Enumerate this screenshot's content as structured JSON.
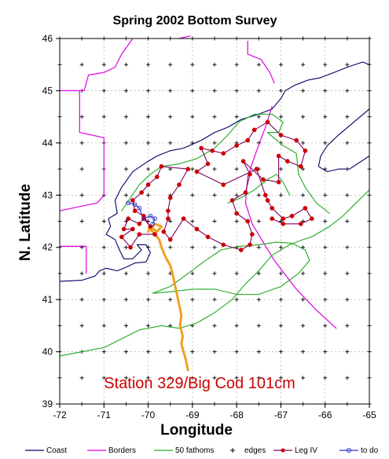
{
  "chart_data": {
    "type": "map",
    "title": "Spring 2002 Bottom Survey",
    "xlabel": "Longitude",
    "ylabel": "N. Latitude",
    "xlim": [
      -72,
      -65
    ],
    "ylim": [
      39,
      46
    ],
    "x_ticks": [
      "-72",
      "-71",
      "-70",
      "-69",
      "-68",
      "-67",
      "-66",
      "-65"
    ],
    "y_ticks": [
      "39",
      "40",
      "41",
      "42",
      "43",
      "44",
      "45",
      "46"
    ],
    "grid": true,
    "annotation": "Station 329/Big Cod 101cm",
    "colors": {
      "coast": "#000066",
      "borders": "#e000e0",
      "fathoms": "#22aa22",
      "leg": "#800060",
      "leg_marker": "#cc0000",
      "todo": "#3333cc",
      "track": "#f0a020",
      "annotation": "#cc0000"
    },
    "legend": [
      {
        "key": "coast",
        "label": "Coast"
      },
      {
        "key": "borders",
        "label": "Borders"
      },
      {
        "key": "fathoms",
        "label": "50 fathoms"
      },
      {
        "key": "edges",
        "label": "edges"
      },
      {
        "key": "leg",
        "label": "Leg IV"
      },
      {
        "key": "todo",
        "label": "to do"
      }
    ],
    "series": [
      {
        "name": "Coast",
        "key": "coast",
        "lines": [
          [
            [
              -72,
              41.35
            ],
            [
              -71.5,
              41.37
            ],
            [
              -71.2,
              41.45
            ],
            [
              -71.1,
              41.55
            ],
            [
              -70.95,
              41.6
            ],
            [
              -70.7,
              41.55
            ],
            [
              -70.5,
              41.62
            ],
            [
              -70.3,
              41.7
            ],
            [
              -70.05,
              41.72
            ],
            [
              -69.95,
              41.9
            ],
            [
              -70.05,
              42.05
            ],
            [
              -70.25,
              42.05
            ],
            [
              -70.15,
              41.95
            ],
            [
              -70.35,
              41.78
            ],
            [
              -70.55,
              41.78
            ],
            [
              -70.65,
              41.95
            ],
            [
              -70.75,
              42.15
            ],
            [
              -70.95,
              42.25
            ],
            [
              -70.85,
              42.4
            ],
            [
              -70.9,
              42.55
            ],
            [
              -70.7,
              42.65
            ],
            [
              -70.75,
              42.9
            ],
            [
              -70.6,
              43.15
            ],
            [
              -70.35,
              43.45
            ],
            [
              -70.0,
              43.65
            ],
            [
              -69.8,
              43.75
            ],
            [
              -69.5,
              43.85
            ],
            [
              -69.2,
              43.9
            ],
            [
              -68.8,
              44.05
            ],
            [
              -68.5,
              44.2
            ],
            [
              -68.2,
              44.3
            ],
            [
              -67.9,
              44.45
            ],
            [
              -67.5,
              44.55
            ],
            [
              -67.2,
              44.65
            ],
            [
              -67.0,
              44.85
            ],
            [
              -66.9,
              45.0
            ],
            [
              -66.7,
              45.1
            ],
            [
              -66.4,
              45.2
            ],
            [
              -66.1,
              45.25
            ],
            [
              -65.8,
              45.35
            ],
            [
              -65.5,
              45.45
            ],
            [
              -65.15,
              45.55
            ],
            [
              -65.0,
              45.5
            ]
          ],
          [
            [
              -65,
              44.65
            ],
            [
              -65.35,
              44.4
            ],
            [
              -65.7,
              44.15
            ],
            [
              -65.95,
              43.95
            ],
            [
              -66.1,
              43.75
            ],
            [
              -66.15,
              43.55
            ],
            [
              -65.95,
              43.45
            ],
            [
              -65.7,
              43.5
            ],
            [
              -65.45,
              43.5
            ],
            [
              -65.0,
              43.75
            ]
          ]
        ]
      },
      {
        "name": "Borders",
        "key": "borders",
        "lines": [
          [
            [
              -71.55,
              45.0
            ],
            [
              -71.55,
              44.2
            ],
            [
              -71.0,
              44.1
            ],
            [
              -71.0,
              43.0
            ],
            [
              -71.15,
              42.85
            ],
            [
              -72.0,
              42.7
            ]
          ],
          [
            [
              -72,
              45.0
            ],
            [
              -71.45,
              45.0
            ],
            [
              -71.35,
              45.3
            ],
            [
              -71.0,
              45.35
            ],
            [
              -70.75,
              45.45
            ],
            [
              -70.6,
              45.7
            ],
            [
              -70.35,
              46.0
            ]
          ],
          [
            [
              -69.3,
              46.0
            ],
            [
              -69.05,
              46.05
            ]
          ],
          [
            [
              -67.75,
              45.95
            ],
            [
              -67.75,
              45.7
            ],
            [
              -67.45,
              45.6
            ],
            [
              -67.25,
              45.35
            ],
            [
              -67.15,
              45.15
            ]
          ],
          [
            [
              -72,
              42.02
            ],
            [
              -71.4,
              42.02
            ],
            [
              -71.4,
              41.5
            ]
          ],
          [
            [
              -67.2,
              44.7
            ],
            [
              -67.35,
              44.3
            ],
            [
              -67.55,
              43.85
            ],
            [
              -67.75,
              43.35
            ],
            [
              -67.8,
              42.85
            ],
            [
              -67.65,
              42.45
            ],
            [
              -67.15,
              41.75
            ],
            [
              -66.65,
              41.2
            ],
            [
              -66.2,
              40.8
            ],
            [
              -65.75,
              40.45
            ]
          ]
        ]
      },
      {
        "name": "50 fathoms",
        "key": "fathoms",
        "lines": [
          [
            [
              -72,
              39.92
            ],
            [
              -71.5,
              40.0
            ],
            [
              -71.0,
              40.08
            ],
            [
              -70.6,
              40.25
            ],
            [
              -70.2,
              40.42
            ],
            [
              -69.7,
              40.5
            ],
            [
              -69.3,
              40.45
            ],
            [
              -68.9,
              40.55
            ],
            [
              -68.5,
              40.75
            ],
            [
              -68.1,
              41.0
            ],
            [
              -67.8,
              41.3
            ],
            [
              -67.5,
              41.55
            ],
            [
              -67.2,
              41.85
            ],
            [
              -66.8,
              42.05
            ],
            [
              -66.5,
              42.15
            ],
            [
              -66.3,
              42.2
            ],
            [
              -65.9,
              42.4
            ],
            [
              -65.6,
              42.6
            ],
            [
              -65.3,
              42.85
            ],
            [
              -65.0,
              43.1
            ]
          ],
          [
            [
              -69.9,
              41.12
            ],
            [
              -69.5,
              41.25
            ],
            [
              -69.1,
              41.5
            ],
            [
              -68.7,
              41.75
            ],
            [
              -68.35,
              41.95
            ],
            [
              -67.95,
              42.02
            ],
            [
              -67.5,
              42.05
            ],
            [
              -67.1,
              42.1
            ],
            [
              -66.75,
              42.08
            ],
            [
              -66.45,
              41.95
            ],
            [
              -66.35,
              41.75
            ],
            [
              -66.6,
              41.5
            ],
            [
              -67.0,
              41.25
            ],
            [
              -67.5,
              41.1
            ],
            [
              -68.0,
              41.1
            ],
            [
              -68.5,
              41.2
            ],
            [
              -69.0,
              41.2
            ],
            [
              -69.5,
              41.15
            ],
            [
              -69.9,
              41.12
            ]
          ],
          [
            [
              -70.6,
              42.7
            ],
            [
              -70.4,
              42.95
            ],
            [
              -70.2,
              43.2
            ],
            [
              -69.95,
              43.4
            ],
            [
              -69.7,
              43.55
            ],
            [
              -69.3,
              43.6
            ],
            [
              -68.9,
              43.7
            ],
            [
              -68.5,
              43.9
            ],
            [
              -68.2,
              44.15
            ],
            [
              -67.95,
              44.4
            ],
            [
              -67.6,
              44.55
            ],
            [
              -67.2,
              44.55
            ],
            [
              -66.95,
              44.4
            ],
            [
              -67.05,
              44.2
            ],
            [
              -67.3,
              44.2
            ],
            [
              -66.95,
              43.95
            ],
            [
              -66.65,
              43.8
            ],
            [
              -66.6,
              43.4
            ],
            [
              -66.45,
              43.15
            ],
            [
              -66.2,
              42.85
            ],
            [
              -65.9,
              42.65
            ]
          ],
          [
            [
              -66.8,
              43.0
            ],
            [
              -66.95,
              43.25
            ],
            [
              -67.1,
              43.4
            ],
            [
              -67.3,
              43.3
            ],
            [
              -67.6,
              43.1
            ],
            [
              -67.9,
              42.95
            ],
            [
              -68.2,
              42.85
            ]
          ]
        ]
      },
      {
        "name": "Leg IV",
        "key": "leg",
        "markers": true,
        "lines": [
          [
            [
              -69.95,
              42.4
            ],
            [
              -70.1,
              42.55
            ],
            [
              -70.2,
              42.45
            ],
            [
              -70.45,
              42.55
            ],
            [
              -70.55,
              42.35
            ],
            [
              -70.35,
              42.35
            ],
            [
              -70.6,
              42.2
            ],
            [
              -70.4,
              42.0
            ],
            [
              -70.2,
              42.25
            ],
            [
              -69.85,
              42.25
            ],
            [
              -70.1,
              42.6
            ],
            [
              -70.3,
              42.7
            ],
            [
              -70.35,
              42.9
            ],
            [
              -70.15,
              43.05
            ],
            [
              -70.0,
              43.2
            ],
            [
              -69.8,
              43.35
            ],
            [
              -69.7,
              43.55
            ],
            [
              -69.1,
              43.5
            ],
            [
              -69.3,
              43.2
            ],
            [
              -69.5,
              42.95
            ],
            [
              -69.55,
              42.7
            ],
            [
              -69.55,
              42.55
            ],
            [
              -69.65,
              42.3
            ],
            [
              -69.5,
              42.15
            ],
            [
              -69.2,
              42.55
            ],
            [
              -68.9,
              42.35
            ],
            [
              -68.65,
              42.2
            ],
            [
              -68.3,
              42.05
            ],
            [
              -67.9,
              41.95
            ],
            [
              -67.7,
              42.05
            ],
            [
              -67.65,
              42.25
            ],
            [
              -67.75,
              42.5
            ],
            [
              -68.0,
              42.65
            ],
            [
              -68.1,
              42.9
            ],
            [
              -67.8,
              43.05
            ],
            [
              -67.7,
              43.4
            ],
            [
              -67.85,
              43.65
            ],
            [
              -67.4,
              43.3
            ],
            [
              -67.05,
              43.25
            ],
            [
              -67.05,
              43.75
            ],
            [
              -66.85,
              43.65
            ],
            [
              -66.55,
              43.55
            ],
            [
              -66.45,
              43.85
            ],
            [
              -66.65,
              44.05
            ],
            [
              -67.0,
              44.15
            ],
            [
              -67.3,
              44.4
            ],
            [
              -67.6,
              44.25
            ],
            [
              -67.75,
              44.05
            ],
            [
              -68.0,
              43.95
            ],
            [
              -68.3,
              43.8
            ],
            [
              -68.55,
              43.85
            ],
            [
              -68.8,
              43.9
            ],
            [
              -68.65,
              43.6
            ],
            [
              -68.9,
              43.45
            ],
            [
              -68.3,
              43.2
            ],
            [
              -67.55,
              43.5
            ],
            [
              -67.35,
              43.0
            ],
            [
              -67.3,
              42.9
            ],
            [
              -67.2,
              42.75
            ],
            [
              -66.95,
              42.55
            ],
            [
              -66.75,
              42.6
            ],
            [
              -66.45,
              42.75
            ],
            [
              -66.3,
              42.55
            ],
            [
              -66.55,
              42.45
            ],
            [
              -66.95,
              42.45
            ],
            [
              -67.2,
              42.55
            ]
          ]
        ]
      },
      {
        "name": "to do",
        "key": "todo",
        "markers": true,
        "lines": [
          [
            [
              -70.45,
              42.85
            ],
            [
              -70.3,
              42.82
            ],
            [
              -70.2,
              42.75
            ],
            [
              -70.1,
              42.55
            ],
            [
              -69.95,
              42.6
            ],
            [
              -69.85,
              42.55
            ],
            [
              -69.9,
              42.45
            ]
          ]
        ]
      },
      {
        "name": "track",
        "key": "track",
        "lines": [
          [
            [
              -69.1,
              39.65
            ],
            [
              -69.15,
              39.85
            ],
            [
              -69.2,
              40.0
            ],
            [
              -69.25,
              40.15
            ],
            [
              -69.22,
              40.3
            ],
            [
              -69.28,
              40.5
            ],
            [
              -69.25,
              40.7
            ],
            [
              -69.3,
              40.9
            ],
            [
              -69.35,
              41.1
            ],
            [
              -69.4,
              41.3
            ],
            [
              -69.45,
              41.5
            ],
            [
              -69.5,
              41.65
            ],
            [
              -69.6,
              41.8
            ],
            [
              -69.7,
              42.0
            ],
            [
              -69.75,
              42.15
            ],
            [
              -69.85,
              42.25
            ],
            [
              -69.95,
              42.35
            ],
            [
              -69.85,
              42.45
            ],
            [
              -69.7,
              42.4
            ],
            [
              -69.8,
              42.3
            ],
            [
              -69.95,
              42.4
            ],
            [
              -70.0,
              42.3
            ]
          ]
        ]
      }
    ]
  },
  "legend_items": [
    "Coast",
    "Borders",
    "50 fathoms",
    "edges",
    "Leg IV",
    "to do"
  ]
}
